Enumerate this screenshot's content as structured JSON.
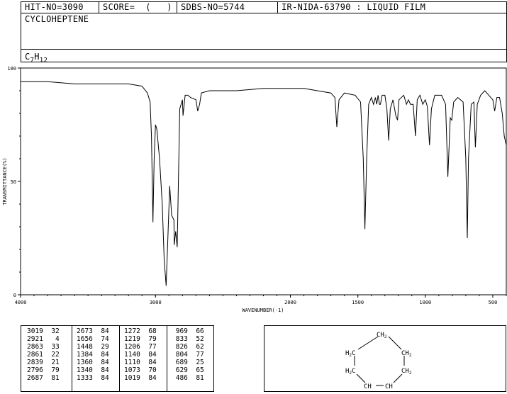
{
  "header": {
    "hit_no": "HIT-NO=3090",
    "score": "SCORE=  (   )",
    "sdbs_no": "SDBS-NO=5744",
    "ir_nida": "IR-NIDA-63790 : LIQUID FILM",
    "compound_name": "CYCLOHEPTENE",
    "formula_base": "C",
    "formula_c": "7",
    "formula_h_letter": "H",
    "formula_h": "12"
  },
  "chart_data": {
    "type": "line",
    "xlabel": "WAVENUMBER(-1)",
    "ylabel": "TRANSMITTANCE(%)",
    "xlim": [
      4000,
      400
    ],
    "ylim": [
      0,
      100
    ],
    "x_ticks": [
      "4000",
      "3000",
      "2000",
      "1500",
      "1000",
      "500"
    ],
    "y_ticks": [
      "100",
      "50",
      "0"
    ],
    "grid": false,
    "series": [
      {
        "name": "",
        "points": [
          [
            4000,
            94
          ],
          [
            3800,
            94
          ],
          [
            3600,
            93
          ],
          [
            3400,
            93
          ],
          [
            3200,
            93
          ],
          [
            3100,
            92
          ],
          [
            3060,
            89
          ],
          [
            3040,
            85
          ],
          [
            3030,
            70
          ],
          [
            3019,
            32
          ],
          [
            3010,
            60
          ],
          [
            3000,
            75
          ],
          [
            2990,
            73
          ],
          [
            2970,
            60
          ],
          [
            2950,
            40
          ],
          [
            2935,
            15
          ],
          [
            2921,
            4
          ],
          [
            2910,
            22
          ],
          [
            2895,
            48
          ],
          [
            2880,
            35
          ],
          [
            2863,
            33
          ],
          [
            2861,
            22
          ],
          [
            2850,
            28
          ],
          [
            2839,
            21
          ],
          [
            2830,
            50
          ],
          [
            2820,
            82
          ],
          [
            2800,
            86
          ],
          [
            2796,
            79
          ],
          [
            2780,
            88
          ],
          [
            2760,
            88
          ],
          [
            2740,
            87
          ],
          [
            2700,
            86
          ],
          [
            2687,
            81
          ],
          [
            2673,
            84
          ],
          [
            2660,
            89
          ],
          [
            2600,
            90
          ],
          [
            2400,
            90
          ],
          [
            2200,
            91
          ],
          [
            2000,
            91
          ],
          [
            1900,
            91
          ],
          [
            1800,
            90
          ],
          [
            1700,
            89
          ],
          [
            1670,
            87
          ],
          [
            1656,
            74
          ],
          [
            1640,
            86
          ],
          [
            1600,
            89
          ],
          [
            1520,
            88
          ],
          [
            1480,
            85
          ],
          [
            1460,
            60
          ],
          [
            1448,
            29
          ],
          [
            1435,
            60
          ],
          [
            1420,
            84
          ],
          [
            1400,
            87
          ],
          [
            1384,
            84
          ],
          [
            1370,
            87
          ],
          [
            1360,
            84
          ],
          [
            1350,
            88
          ],
          [
            1340,
            84
          ],
          [
            1333,
            84
          ],
          [
            1320,
            88
          ],
          [
            1300,
            88
          ],
          [
            1285,
            82
          ],
          [
            1272,
            68
          ],
          [
            1260,
            82
          ],
          [
            1240,
            86
          ],
          [
            1219,
            79
          ],
          [
            1206,
            77
          ],
          [
            1195,
            86
          ],
          [
            1160,
            88
          ],
          [
            1140,
            84
          ],
          [
            1125,
            86
          ],
          [
            1110,
            84
          ],
          [
            1090,
            84
          ],
          [
            1073,
            70
          ],
          [
            1060,
            86
          ],
          [
            1040,
            88
          ],
          [
            1019,
            84
          ],
          [
            1000,
            86
          ],
          [
            985,
            83
          ],
          [
            969,
            66
          ],
          [
            955,
            82
          ],
          [
            930,
            88
          ],
          [
            880,
            88
          ],
          [
            850,
            84
          ],
          [
            833,
            52
          ],
          [
            826,
            62
          ],
          [
            815,
            78
          ],
          [
            804,
            77
          ],
          [
            790,
            85
          ],
          [
            760,
            87
          ],
          [
            720,
            85
          ],
          [
            700,
            60
          ],
          [
            689,
            25
          ],
          [
            680,
            60
          ],
          [
            660,
            84
          ],
          [
            640,
            85
          ],
          [
            629,
            65
          ],
          [
            615,
            84
          ],
          [
            590,
            88
          ],
          [
            560,
            90
          ],
          [
            530,
            88
          ],
          [
            500,
            86
          ],
          [
            486,
            81
          ],
          [
            470,
            87
          ],
          [
            450,
            87
          ],
          [
            430,
            80
          ],
          [
            415,
            70
          ],
          [
            400,
            66
          ]
        ]
      }
    ]
  },
  "peaks": [
    [
      [
        "3019",
        "32"
      ],
      [
        "2921",
        "4"
      ],
      [
        "2863",
        "33"
      ],
      [
        "2861",
        "22"
      ],
      [
        "2839",
        "21"
      ],
      [
        "2796",
        "79"
      ],
      [
        "2687",
        "81"
      ]
    ],
    [
      [
        "2673",
        "84"
      ],
      [
        "1656",
        "74"
      ],
      [
        "1448",
        "29"
      ],
      [
        "1384",
        "84"
      ],
      [
        "1360",
        "84"
      ],
      [
        "1340",
        "84"
      ],
      [
        "1333",
        "84"
      ]
    ],
    [
      [
        "1272",
        "68"
      ],
      [
        "1219",
        "79"
      ],
      [
        "1206",
        "77"
      ],
      [
        "1140",
        "84"
      ],
      [
        "1110",
        "84"
      ],
      [
        "1073",
        "70"
      ],
      [
        "1019",
        "84"
      ]
    ],
    [
      [
        "969",
        "66"
      ],
      [
        "833",
        "52"
      ],
      [
        "826",
        "62"
      ],
      [
        "804",
        "77"
      ],
      [
        "689",
        "25"
      ],
      [
        "629",
        "65"
      ],
      [
        "486",
        "81"
      ]
    ]
  ],
  "structure": {
    "top": "CH2",
    "left_upper": "H2C",
    "left_lower": "H2C",
    "right_upper": "CH2",
    "right_lower": "CH2",
    "bottom_left": "CH",
    "bottom_right": "CH"
  }
}
